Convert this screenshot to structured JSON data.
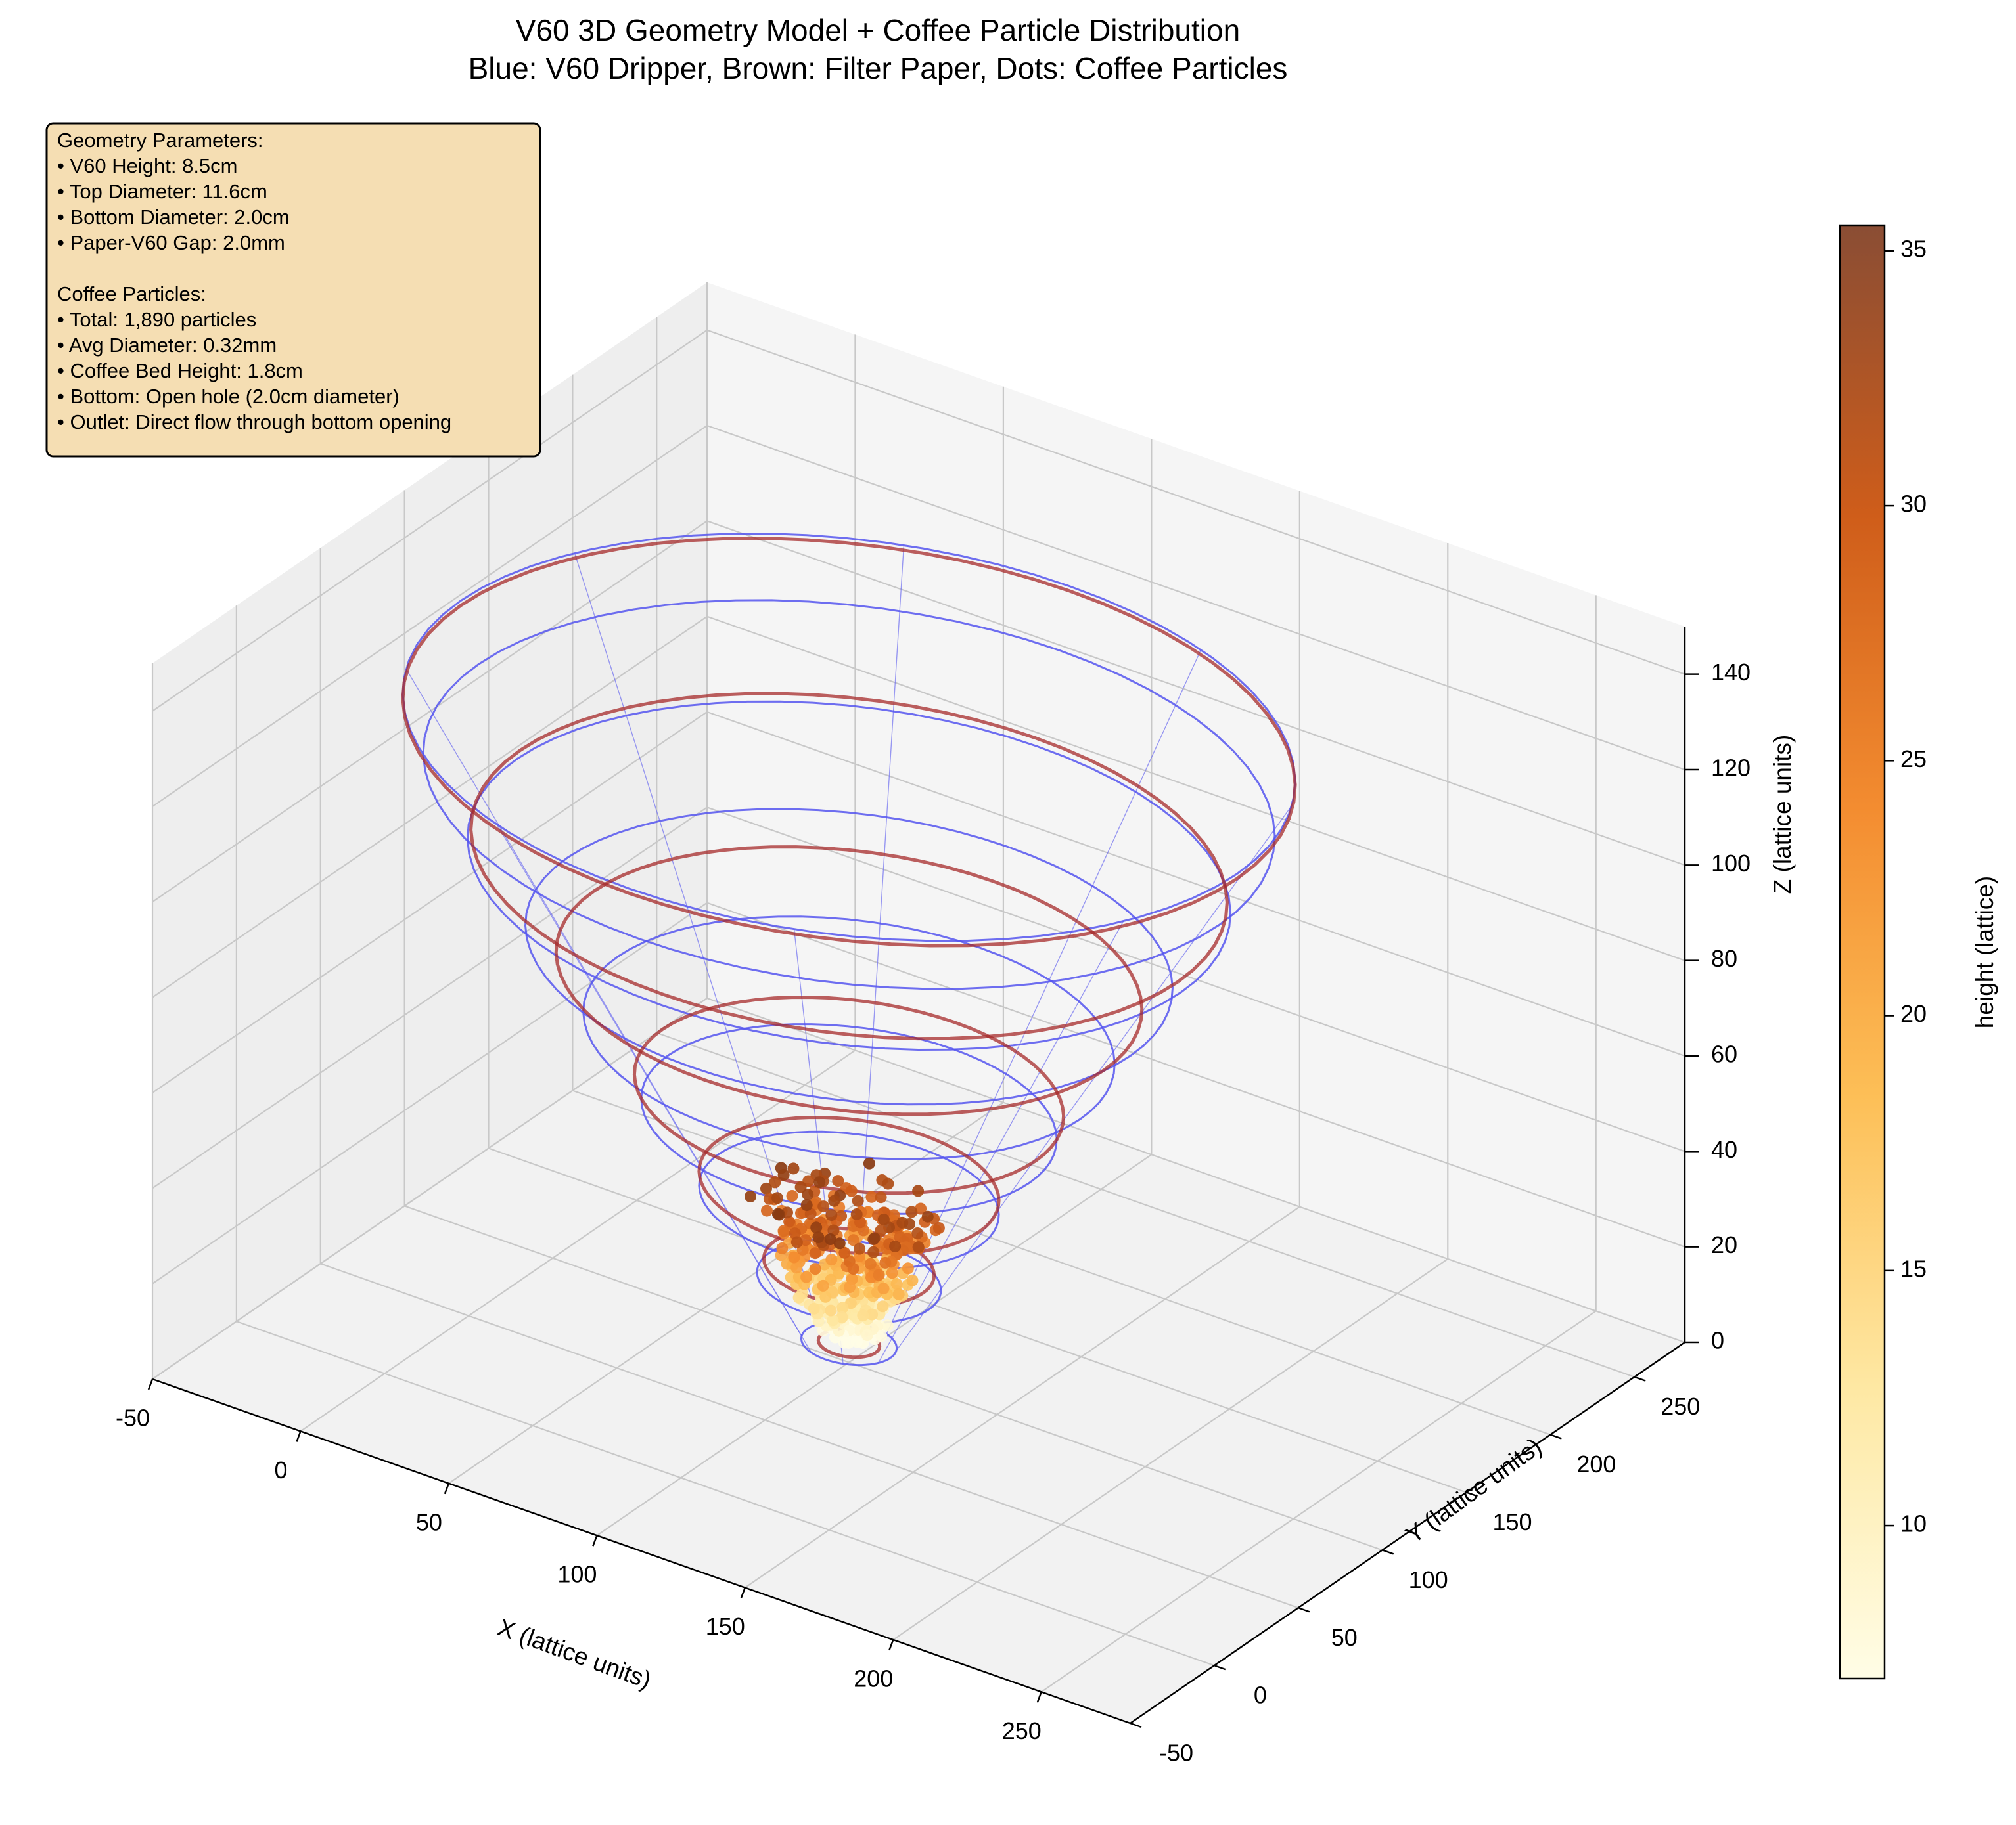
{
  "chart_data": {
    "type": "scatter",
    "title": "V60 3D Geometry Model + Coffee Particle Distribution",
    "subtitle": "Blue: V60 Dripper, Brown: Filter Paper, Dots: Coffee Particles",
    "xlabel": "X (lattice units)",
    "ylabel": "Y (lattice units)",
    "zlabel": "Z (lattice units)",
    "xlim": [
      -50,
      280
    ],
    "ylim": [
      -50,
      280
    ],
    "zlim": [
      0,
      150
    ],
    "x_ticks": [
      "-50",
      "0",
      "50",
      "100",
      "150",
      "200",
      "250"
    ],
    "y_ticks": [
      "-50",
      "0",
      "50",
      "100",
      "150",
      "200",
      "250"
    ],
    "z_ticks": [
      "0",
      "20",
      "40",
      "60",
      "80",
      "100",
      "120",
      "140"
    ],
    "grid": true,
    "colorbar": {
      "label": "height (lattice)",
      "ticks": [
        "10",
        "15",
        "20",
        "25",
        "30",
        "35"
      ],
      "range": [
        7,
        35.5
      ],
      "colormap": "YlOrBr"
    },
    "dripper": {
      "color": "#5555ee",
      "center": [
        100,
        100
      ],
      "rings": [
        {
          "z": 4,
          "r": 14
        },
        {
          "z": 17,
          "r": 27
        },
        {
          "z": 34,
          "r": 44
        },
        {
          "z": 51,
          "r": 61
        },
        {
          "z": 68,
          "r": 78
        },
        {
          "z": 85,
          "r": 95
        },
        {
          "z": 102,
          "r": 112
        },
        {
          "z": 119,
          "r": 125
        },
        {
          "z": 131,
          "r": 131
        }
      ],
      "spokes": 8
    },
    "filter_paper": {
      "color": "#a52a2a",
      "rings": [
        {
          "z": 4,
          "r": 9
        },
        {
          "z": 20,
          "r": 25
        },
        {
          "z": 37,
          "r": 44
        },
        {
          "z": 56,
          "r": 63
        },
        {
          "z": 80,
          "r": 86
        },
        {
          "z": 104,
          "r": 111
        },
        {
          "z": 130,
          "r": 131
        }
      ]
    },
    "particles": {
      "total": "1,890",
      "z_range": [
        6,
        34
      ],
      "center": [
        100,
        100
      ]
    },
    "info_box": {
      "lines": [
        "Geometry Parameters:",
        "• V60 Height: 8.5cm",
        "• Top Diameter: 11.6cm",
        "• Bottom Diameter: 2.0cm",
        "• Paper-V60 Gap: 2.0mm",
        "",
        "Coffee Particles:",
        "• Total: 1,890 particles",
        "• Avg Diameter: 0.32mm",
        "• Coffee Bed Height: 1.8cm",
        "• Bottom: Open hole (2.0cm diameter)",
        "• Outlet: Direct flow through bottom opening"
      ],
      "background": "#f5deb3"
    }
  }
}
